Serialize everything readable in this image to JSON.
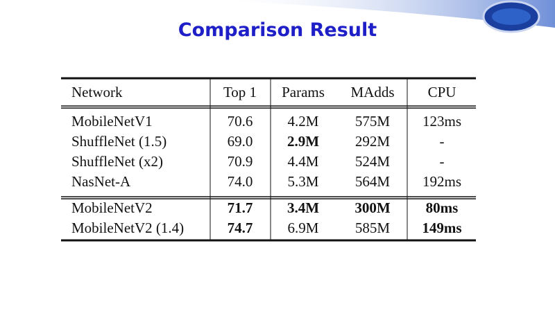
{
  "header": {
    "title": "Comparison Result"
  },
  "table": {
    "header": [
      "Network",
      "Top 1",
      "Params",
      "MAdds",
      "CPU"
    ],
    "groups": [
      [
        [
          "MobileNetV1",
          "70.6",
          "4.2M",
          "575M",
          "123ms"
        ],
        [
          "ShuffleNet (1.5)",
          "69.0",
          {
            "text": "2.9M",
            "bold": true
          },
          "292M",
          "-"
        ],
        [
          "ShuffleNet (x2)",
          "70.9",
          "4.4M",
          "524M",
          "-"
        ],
        [
          "NasNet-A",
          "74.0",
          "5.3M",
          "564M",
          "192ms"
        ]
      ],
      [
        [
          "MobileNetV2",
          {
            "text": "71.7",
            "bold": true
          },
          {
            "text": "3.4M",
            "bold": true
          },
          {
            "text": "300M",
            "bold": true
          },
          {
            "text": "80ms",
            "bold": true
          }
        ],
        [
          "MobileNetV2 (1.4)",
          {
            "text": "74.7",
            "bold": true
          },
          "6.9M",
          "585M",
          {
            "text": "149ms",
            "bold": true
          }
        ]
      ]
    ]
  }
}
